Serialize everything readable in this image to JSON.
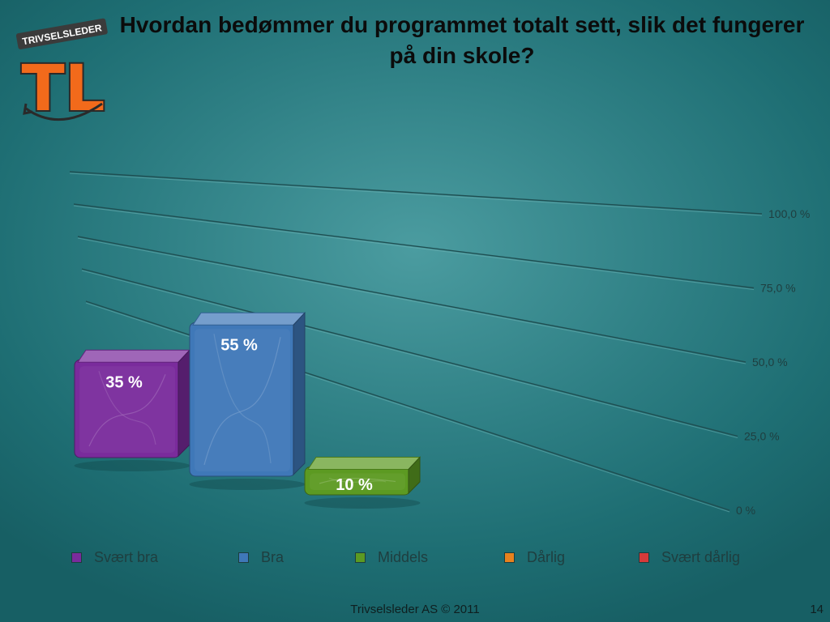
{
  "logo": {
    "brand_text": "TRIVSELSLEDER",
    "monogram": "TL"
  },
  "title": "Hvordan bedømmer du programmet totalt sett, slik det fungerer på din skole?",
  "chart_data": {
    "type": "bar",
    "title": "Hvordan bedømmer du programmet totalt sett, slik det fungerer på din skole?",
    "categories": [
      "Svært bra",
      "Bra",
      "Middels",
      "Dårlig",
      "Svært dårlig"
    ],
    "values": [
      35,
      55,
      10,
      0,
      0
    ],
    "value_labels": [
      "35 %",
      "55 %",
      "10 %",
      "",
      ""
    ],
    "colors": [
      "#7a2b9c",
      "#3f78b8",
      "#5c9a22",
      "#e8821e",
      "#d63a3a"
    ],
    "y_ticks": [
      0,
      25,
      50,
      75,
      100
    ],
    "y_tick_labels": [
      "0 %",
      "25,0 %",
      "50,0 %",
      "75,0 %",
      "100,0 %"
    ],
    "ylim": [
      0,
      100
    ],
    "grid": true,
    "legend_position": "bottom"
  },
  "footer": {
    "text": "Trivselsleder AS  © 2011",
    "page_number": "14"
  }
}
